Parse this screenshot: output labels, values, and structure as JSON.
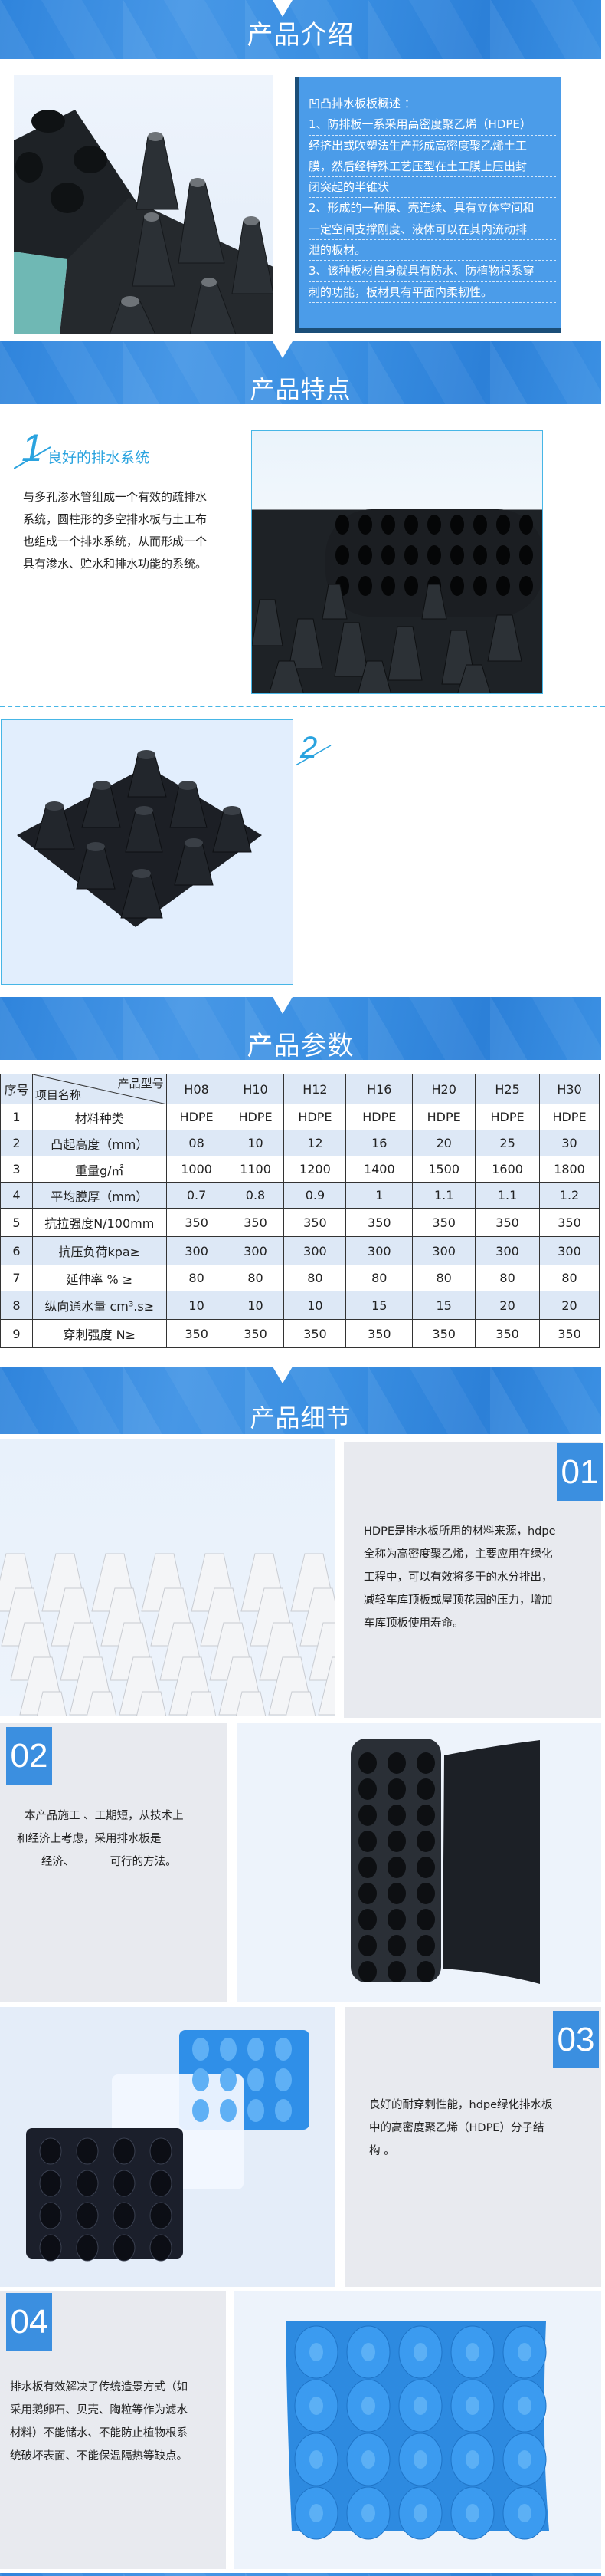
{
  "sections": {
    "intro_title": "产品介绍",
    "features_title": "产品特点",
    "params_title": "产品参数",
    "details_title": "产品细节"
  },
  "intro": {
    "lines": [
      "凹凸排水板板概述 ：",
      "1、防排板一系采用高密度聚乙烯（HDPE）",
      "经挤出或吹塑法生产形成高密度聚乙烯土工",
      "膜，然后经特殊工艺压型在土工膜上压出封",
      "闭突起的半锥状",
      "2、形成的一种膜、壳连续、具有立体空间和",
      "一定空间支撑刚度、液体可以在其内流动排",
      "泄的板材。",
      "3、该种板材自身就具有防水、防植物根系穿",
      "刺的功能，板材具有平面内柔韧性。"
    ]
  },
  "features": [
    {
      "number": "1",
      "heading": "良好的排水系统",
      "lines": [
        "与多孔渗水管组成一个有效的疏排水",
        "系统，圆柱形的多空排水板与土工布",
        "也组成一个排水系统，从而形成一个",
        "具有渗水、贮水和排水功能的系统。"
      ]
    },
    {
      "number": "2"
    }
  ],
  "params_table": {
    "corner_top": "产品型号",
    "corner_bottom": "项目名称",
    "index_header": "序号",
    "models": [
      "H08",
      "H10",
      "H12",
      "H16",
      "H20",
      "H25",
      "H30"
    ],
    "rows": [
      {
        "no": "1",
        "name": "材料种类",
        "values": [
          "HDPE",
          "HDPE",
          "HDPE",
          "HDPE",
          "HDPE",
          "HDPE",
          "HDPE"
        ]
      },
      {
        "no": "2",
        "name": "凸起高度（mm）",
        "values": [
          "08",
          "10",
          "12",
          "16",
          "20",
          "25",
          "30"
        ]
      },
      {
        "no": "3",
        "name": "重量g/㎡",
        "values": [
          "1000",
          "1100",
          "1200",
          "1400",
          "1500",
          "1600",
          "1800"
        ]
      },
      {
        "no": "4",
        "name": "平均膜厚（mm）",
        "values": [
          "0.7",
          "0.8",
          "0.9",
          "1",
          "1.1",
          "1.1",
          "1.2"
        ]
      },
      {
        "no": "5",
        "name": "抗拉强度N/100mm",
        "values": [
          "350",
          "350",
          "350",
          "350",
          "350",
          "350",
          "350"
        ]
      },
      {
        "no": "6",
        "name": "抗压负荷kpa≥",
        "values": [
          "300",
          "300",
          "300",
          "300",
          "300",
          "300",
          "300"
        ]
      },
      {
        "no": "7",
        "name": "延伸率 % ≥",
        "values": [
          "80",
          "80",
          "80",
          "80",
          "80",
          "80",
          "80"
        ]
      },
      {
        "no": "8",
        "name": "纵向通水量 cm³.s≥",
        "values": [
          "10",
          "10",
          "10",
          "15",
          "15",
          "20",
          "20"
        ]
      },
      {
        "no": "9",
        "name": "穿刺强度 N≥",
        "values": [
          "350",
          "350",
          "350",
          "350",
          "350",
          "350",
          "350"
        ]
      }
    ]
  },
  "details": [
    {
      "number": "01",
      "lines": [
        "HDPE是排水板所用的材料来源，hdpe",
        "全称为高密度聚乙烯，主要应用在绿化",
        "工程中，可以有效将多于的水分排出，",
        "减轻车库顶板或屋顶花园的压力，增加",
        "车库顶板使用寿命。"
      ]
    },
    {
      "number": "02",
      "lines": [
        "本产品施工 、工期短，从技术上",
        "和经济上考虑，采用排水板是",
        "经济、          可行的方法。"
      ]
    },
    {
      "number": "03",
      "lines": [
        "良好的耐穿刺性能，hdpe绿化排水板",
        "中的高密度聚乙烯（HDPE）分子结",
        "构 。"
      ]
    },
    {
      "number": "04",
      "lines": [
        "排水板有效解决了传统造景方式（如",
        "采用鹅卵石、贝壳、陶粒等作为滤水",
        "材料）不能储水、不能防止植物根系",
        "统破坏表面、不能保温隔热等缺点。"
      ]
    }
  ],
  "colors": {
    "accent": "#3b8fe0",
    "dark_border": "#1b4e78",
    "panel": "#e8eaef",
    "table_alt": "#dde8f6"
  }
}
